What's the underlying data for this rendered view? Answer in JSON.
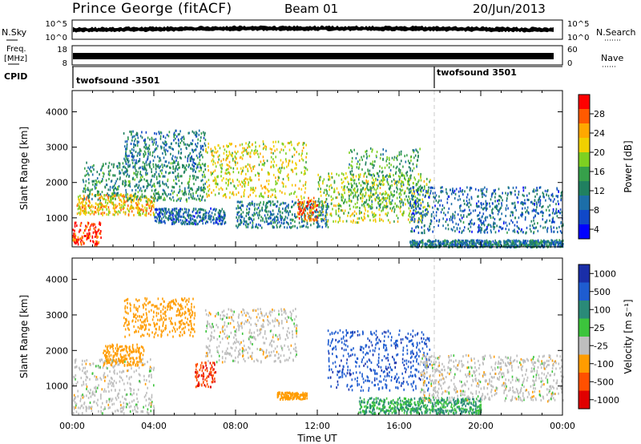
{
  "header": {
    "station": "Prince George (fitACF)",
    "beam": "Beam 01",
    "date": "20/Jun/2013"
  },
  "summary_panels": {
    "nsky": {
      "label": "N.Sky",
      "ticks": [
        "10^5",
        "10^0"
      ]
    },
    "nsearch": {
      "label": "N.Search",
      "ticks": [
        "10^5",
        "10^0"
      ]
    },
    "freq": {
      "label_line1": "Freq.",
      "label_line2": "[MHz]",
      "ticks": [
        "18",
        "8"
      ]
    },
    "nave": {
      "label": "Nave",
      "ticks": [
        "60",
        "0"
      ]
    },
    "cpid": {
      "label": "CPID",
      "programs": [
        "twofsound -3501",
        "twofsound 3501"
      ]
    }
  },
  "chart_data": [
    {
      "type": "heatmap",
      "name": "power",
      "xlabel": "",
      "ylabel": "Slant Range [km]",
      "x_range_hours": [
        0,
        24
      ],
      "ylim": [
        180,
        4600
      ],
      "y_ticks": [
        1000,
        2000,
        3000,
        4000
      ],
      "colorbar": {
        "label": "Power [dB]",
        "ticks": [
          "28",
          "24",
          "20",
          "16",
          "12",
          "8",
          "4"
        ],
        "colors": [
          "#ff0000",
          "#ff5a00",
          "#ffa800",
          "#f0d000",
          "#7ed021",
          "#36a04a",
          "#208060",
          "#1c6ea8",
          "#1048c8",
          "#0000ff"
        ]
      },
      "mode_change_hour": 18.0,
      "echo_regions": [
        {
          "start_h": 0.0,
          "end_h": 1.4,
          "range_km": [
            250,
            900
          ],
          "power_db": 28
        },
        {
          "start_h": 0.2,
          "end_h": 4.0,
          "range_km": [
            1100,
            1700
          ],
          "power_db": 22
        },
        {
          "start_h": 0.5,
          "end_h": 6.5,
          "range_km": [
            1500,
            2600
          ],
          "power_db": 12
        },
        {
          "start_h": 2.5,
          "end_h": 6.5,
          "range_km": [
            2400,
            3500
          ],
          "power_db": 10
        },
        {
          "start_h": 4.0,
          "end_h": 7.5,
          "range_km": [
            850,
            1300
          ],
          "power_db": 8
        },
        {
          "start_h": 6.5,
          "end_h": 11.5,
          "range_km": [
            1600,
            3200
          ],
          "power_db": 20
        },
        {
          "start_h": 8.0,
          "end_h": 12.5,
          "range_km": [
            750,
            1500
          ],
          "power_db": 10
        },
        {
          "start_h": 11.0,
          "end_h": 12.0,
          "range_km": [
            950,
            1600
          ],
          "power_db": 26
        },
        {
          "start_h": 12.0,
          "end_h": 17.5,
          "range_km": [
            900,
            2300
          ],
          "power_db": 18
        },
        {
          "start_h": 13.5,
          "end_h": 17.0,
          "range_km": [
            1300,
            3000
          ],
          "power_db": 14
        },
        {
          "start_h": 16.5,
          "end_h": 24.0,
          "range_km": [
            600,
            1900
          ],
          "power_db": 8
        },
        {
          "start_h": 16.5,
          "end_h": 24.0,
          "range_km": [
            200,
            400
          ],
          "power_db": 10
        }
      ]
    },
    {
      "type": "heatmap",
      "name": "velocity",
      "xlabel": "Time UT",
      "ylabel": "Slant Range [km]",
      "x_ticks": [
        "00:00",
        "04:00",
        "08:00",
        "12:00",
        "16:00",
        "20:00",
        "00:00"
      ],
      "x_range_hours": [
        0,
        24
      ],
      "ylim": [
        180,
        4600
      ],
      "y_ticks": [
        1000,
        2000,
        3000,
        4000
      ],
      "colorbar": {
        "label": "Velocity [m s⁻¹]",
        "ticks": [
          "1000",
          "500",
          "100",
          "25",
          "-25",
          "-100",
          "-500",
          "-1000"
        ],
        "colors": [
          "#1a2ea8",
          "#1e5cd0",
          "#2a8a78",
          "#3cc43c",
          "#bebebe",
          "#ff9c00",
          "#ff5000",
          "#e00000"
        ]
      },
      "mode_change_hour": 18.0,
      "echo_regions": [
        {
          "start_h": 0.0,
          "end_h": 4.0,
          "range_km": [
            250,
            1800
          ],
          "velocity_ms": 0
        },
        {
          "start_h": 1.5,
          "end_h": 3.5,
          "range_km": [
            1600,
            2200
          ],
          "velocity_ms": -120
        },
        {
          "start_h": 2.5,
          "end_h": 6.0,
          "range_km": [
            2400,
            3500
          ],
          "velocity_ms": -80
        },
        {
          "start_h": 6.0,
          "end_h": 7.0,
          "range_km": [
            1000,
            1700
          ],
          "velocity_ms": -700
        },
        {
          "start_h": 6.5,
          "end_h": 11.0,
          "range_km": [
            1700,
            3200
          ],
          "velocity_ms": 0
        },
        {
          "start_h": 10.0,
          "end_h": 11.5,
          "range_km": [
            650,
            850
          ],
          "velocity_ms": -150
        },
        {
          "start_h": 12.5,
          "end_h": 17.5,
          "range_km": [
            900,
            2600
          ],
          "velocity_ms": 600
        },
        {
          "start_h": 14.0,
          "end_h": 20.0,
          "range_km": [
            250,
            700
          ],
          "velocity_ms": 60
        },
        {
          "start_h": 17.0,
          "end_h": 24.0,
          "range_km": [
            600,
            1900
          ],
          "velocity_ms": 0
        }
      ]
    }
  ]
}
